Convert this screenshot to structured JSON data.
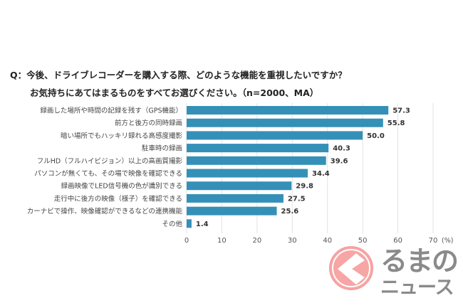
{
  "chart_data": {
    "type": "bar",
    "orientation": "horizontal",
    "title_line1": "Q：今後、ドライブレコーダーを購入する際、どのような機能を重視したいですか？",
    "title_line2": "お気持ちにあてはまるものをすべてお選びください。（n=2000、MA）",
    "categories": [
      "録画した場所や時間の記録を残す（GPS機能）",
      "前方と後方の同時録画",
      "暗い場所でもハッキリ録れる高感度撮影",
      "駐車時の録画",
      "フルHD（フルハイビジョン）以上の高画質撮影",
      "パソコンが無くても、その場で映像を確認できる",
      "録画映像でLED信号機の色が識別できる",
      "走行中に後方の映像（様子）を確認できる",
      "カーナビで操作、映像確認ができるなどの連携機能",
      "その他"
    ],
    "values": [
      57.3,
      55.8,
      50.0,
      40.3,
      39.6,
      34.4,
      29.8,
      27.5,
      25.6,
      1.4
    ],
    "value_labels": [
      "57.3",
      "55.8",
      "50.0",
      "40.3",
      "39.6",
      "34.4",
      "29.8",
      "27.5",
      "25.6",
      "1.4"
    ],
    "xlim": [
      0,
      70
    ],
    "xticks": [
      "0",
      "10",
      "20",
      "30",
      "40",
      "50",
      "60",
      "70"
    ],
    "xunit": "(%)",
    "grid": true,
    "bar_color": "#3590b8"
  },
  "logo": {
    "line1": "るまの",
    "line2": "ニュース",
    "color": "#f6a0a0"
  }
}
